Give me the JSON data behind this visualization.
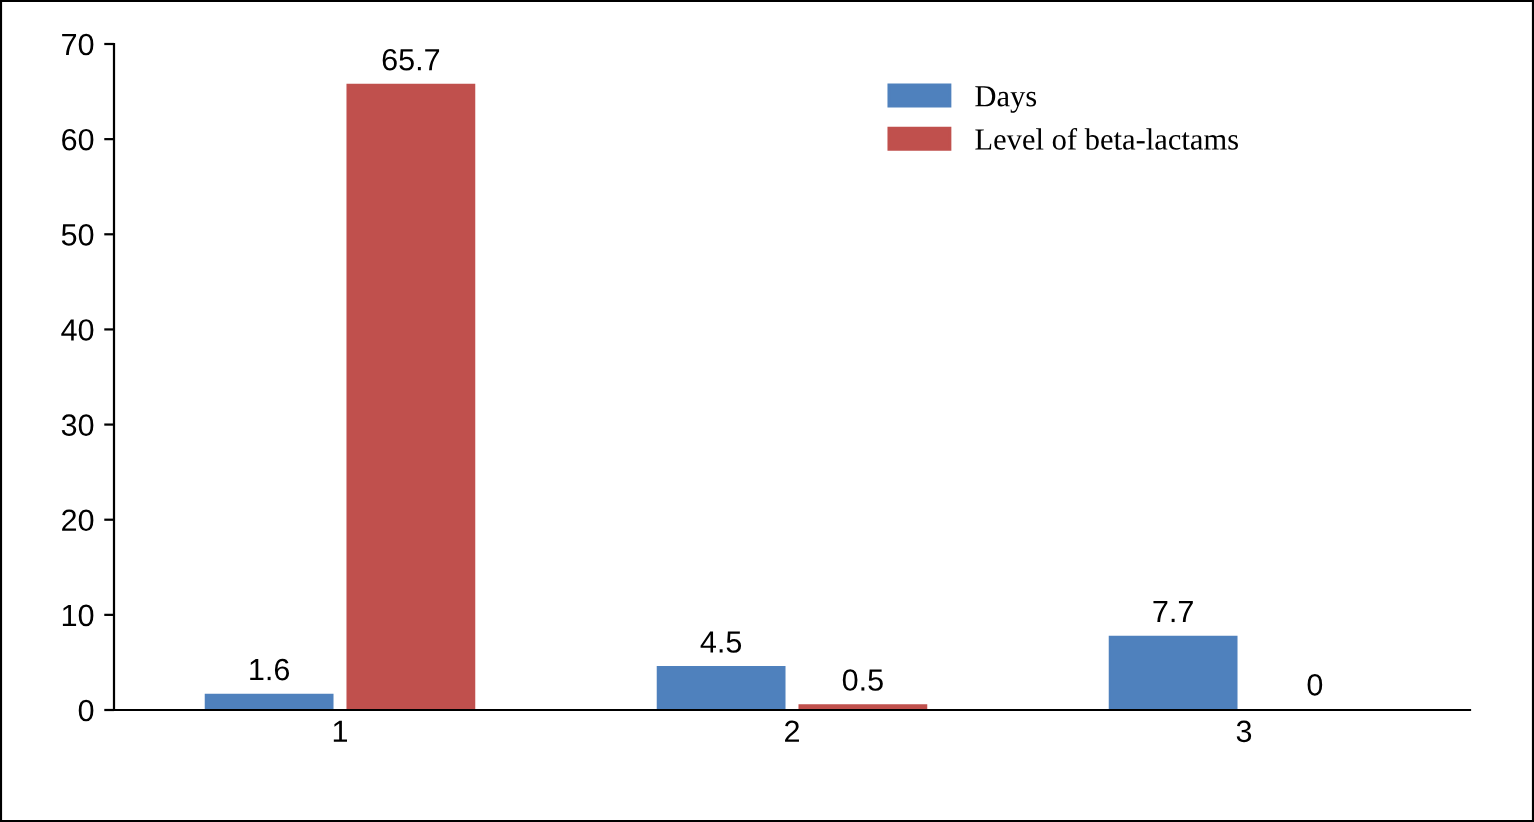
{
  "chart_data": {
    "type": "bar",
    "categories": [
      "1",
      "2",
      "3"
    ],
    "series": [
      {
        "name": "Days",
        "color": "#4f81bd",
        "values": [
          1.6,
          4.5,
          7.7
        ]
      },
      {
        "name": "Level of beta-lactams",
        "color": "#c0504d",
        "values": [
          65.7,
          0.5,
          0
        ]
      }
    ],
    "ylim": [
      0,
      70
    ],
    "yticks": [
      0,
      10,
      20,
      30,
      40,
      50,
      60,
      70
    ],
    "data_labels": true,
    "grid": false,
    "legend": "top right"
  }
}
